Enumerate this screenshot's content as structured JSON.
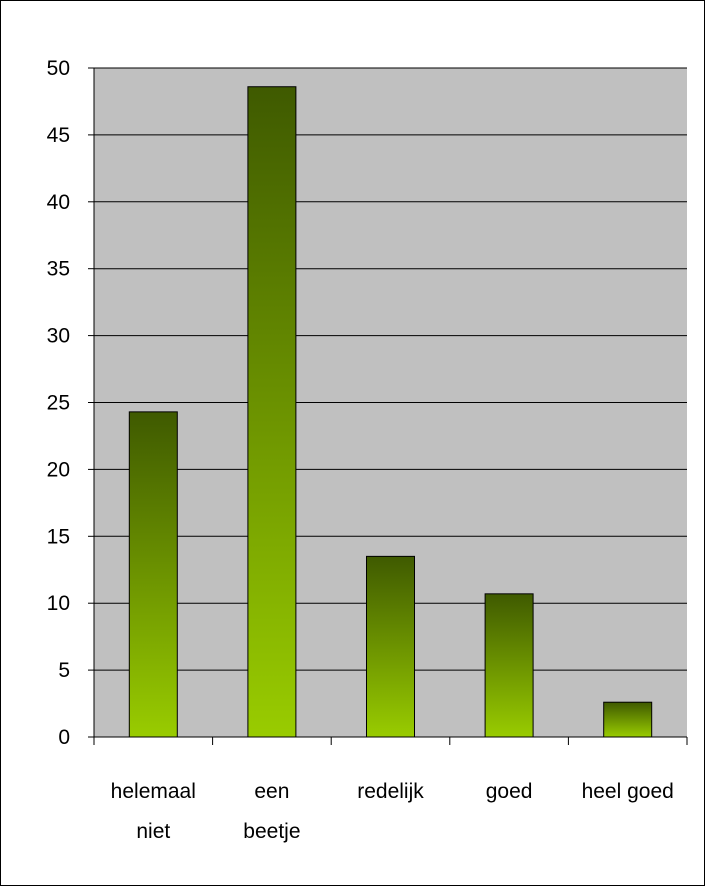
{
  "chart_data": {
    "type": "bar",
    "title": "",
    "xlabel": "",
    "ylabel": "",
    "categories": [
      [
        "helemaal",
        "niet"
      ],
      [
        "een",
        "beetje"
      ],
      [
        "redelijk"
      ],
      [
        "goed"
      ],
      [
        "heel goed"
      ]
    ],
    "values": [
      24.3,
      48.6,
      13.5,
      10.7,
      2.6
    ],
    "ylim": [
      0,
      50
    ],
    "yticks": [
      "0",
      "5",
      "10",
      "15",
      "20",
      "25",
      "30",
      "35",
      "40",
      "45",
      "50"
    ],
    "grid": true,
    "legend": "none",
    "colors": {
      "plot_background": "#c0c0c0",
      "bar_top": "#3f5a00",
      "bar_bottom": "#99cc00",
      "gridline": "#000000",
      "axis": "#000000"
    }
  }
}
